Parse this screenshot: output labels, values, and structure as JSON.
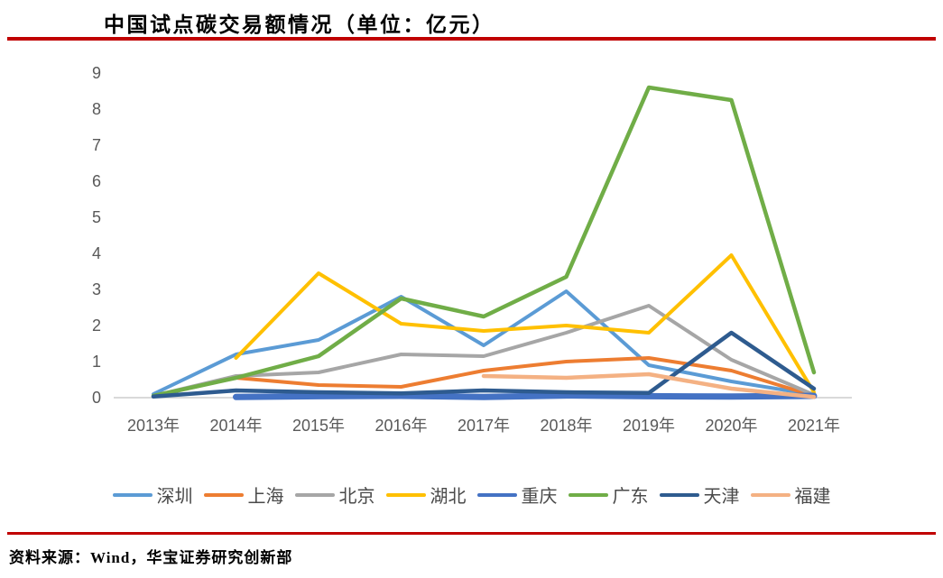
{
  "title": "中国试点碳交易额情况（单位：亿元）",
  "source": "资料来源：Wind，华宝证券研究创新部",
  "accent_rule_color": "#C00000",
  "chart_data": {
    "type": "line",
    "title": "中国试点碳交易额情况（单位：亿元）",
    "xlabel": "",
    "ylabel": "",
    "categories": [
      "2013年",
      "2014年",
      "2015年",
      "2016年",
      "2017年",
      "2018年",
      "2019年",
      "2020年",
      "2021年"
    ],
    "ylim": [
      0,
      9
    ],
    "ytick_step": 1,
    "grid": false,
    "legend_position": "bottom",
    "axis_line_color": "#D9D9D9",
    "tick_label_color": "#595959",
    "series": [
      {
        "name": "深圳",
        "slug": "shenzhen",
        "color": "#5B9BD5",
        "stroke_width": 4,
        "values": [
          0.1,
          1.2,
          1.6,
          2.8,
          1.45,
          2.95,
          0.9,
          0.45,
          0.08
        ]
      },
      {
        "name": "上海",
        "slug": "shanghai",
        "color": "#ED7D31",
        "stroke_width": 4,
        "values": [
          0.05,
          0.55,
          0.35,
          0.3,
          0.75,
          1.0,
          1.1,
          0.75,
          0.05
        ]
      },
      {
        "name": "北京",
        "slug": "beijing",
        "color": "#A6A6A6",
        "stroke_width": 4,
        "values": [
          0.05,
          0.6,
          0.7,
          1.2,
          1.15,
          1.8,
          2.55,
          1.05,
          0.08
        ]
      },
      {
        "name": "湖北",
        "slug": "hubei",
        "color": "#FFC000",
        "stroke_width": 4,
        "values": [
          null,
          1.1,
          3.45,
          2.05,
          1.85,
          2.0,
          1.8,
          3.95,
          0.15
        ]
      },
      {
        "name": "重庆",
        "slug": "chongqing",
        "color": "#4472C4",
        "stroke_width": 7,
        "values": [
          null,
          0.02,
          0.04,
          0.05,
          0.02,
          0.06,
          0.04,
          0.03,
          0.05
        ]
      },
      {
        "name": "广东",
        "slug": "guangdong",
        "color": "#70AD47",
        "stroke_width": 4.5,
        "values": [
          0.05,
          0.55,
          1.15,
          2.75,
          2.25,
          3.35,
          8.6,
          8.25,
          0.7
        ]
      },
      {
        "name": "天津",
        "slug": "tianjin",
        "color": "#2E5B8F",
        "stroke_width": 4.5,
        "values": [
          0.03,
          0.2,
          0.15,
          0.12,
          0.2,
          0.15,
          0.13,
          1.8,
          0.25
        ]
      },
      {
        "name": "福建",
        "slug": "fujian",
        "color": "#F4B183",
        "stroke_width": 4.5,
        "values": [
          null,
          null,
          null,
          null,
          0.6,
          0.55,
          0.65,
          0.25,
          0.02
        ]
      }
    ]
  }
}
